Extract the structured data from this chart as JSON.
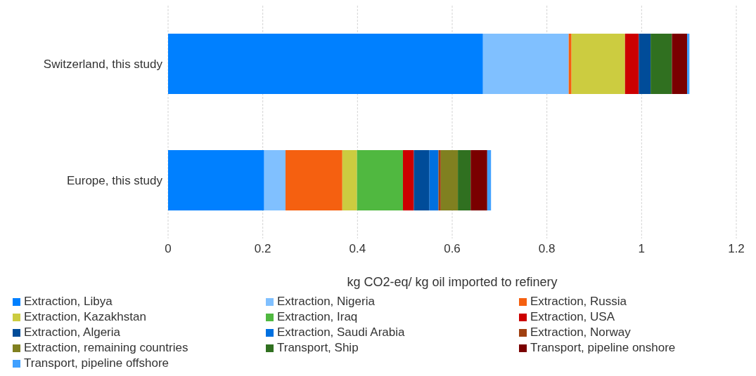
{
  "chart_data": {
    "type": "bar",
    "orientation": "horizontal",
    "stacked": true,
    "xlabel": "kg CO2-eq/ kg oil imported to refinery",
    "categories": [
      "Switzerland, this study",
      "Europe, this study"
    ],
    "xlim": [
      0,
      1.2
    ],
    "xticks": [
      0,
      0.2,
      0.4,
      0.6,
      0.8,
      1,
      1.2
    ],
    "grid": "x",
    "legend": "bottom",
    "series": [
      {
        "name": "Extraction, Libya",
        "color": "#0080ff",
        "values": [
          0.665,
          0.203
        ]
      },
      {
        "name": "Extraction, Nigeria",
        "color": "#80c0ff",
        "values": [
          0.181,
          0.045
        ]
      },
      {
        "name": "Extraction, Russia",
        "color": "#f56010",
        "values": [
          0.006,
          0.12
        ]
      },
      {
        "name": "Extraction, Kazakhstan",
        "color": "#cccc40",
        "values": [
          0.113,
          0.031
        ]
      },
      {
        "name": "Extraction, Iraq",
        "color": "#50b840",
        "values": [
          0,
          0.097
        ]
      },
      {
        "name": "Extraction, USA",
        "color": "#cc0000",
        "values": [
          0.029,
          0.023
        ]
      },
      {
        "name": "Extraction, Algeria",
        "color": "#004c99",
        "values": [
          0.025,
          0.033
        ]
      },
      {
        "name": "Extraction, Saudi Arabia",
        "color": "#0070e0",
        "values": [
          0,
          0.019
        ]
      },
      {
        "name": "Extraction, Norway",
        "color": "#a04010",
        "values": [
          0,
          0.005
        ]
      },
      {
        "name": "Extraction, remaining countries",
        "color": "#808020",
        "values": [
          0,
          0.036
        ]
      },
      {
        "name": "Transport, Ship",
        "color": "#307020",
        "values": [
          0.045,
          0.027
        ]
      },
      {
        "name": "Transport, pipeline onshore",
        "color": "#7a0000",
        "values": [
          0.032,
          0.035
        ]
      },
      {
        "name": "Transport, pipeline offshore",
        "color": "#40a0ff",
        "values": [
          0.005,
          0.008
        ]
      }
    ]
  }
}
